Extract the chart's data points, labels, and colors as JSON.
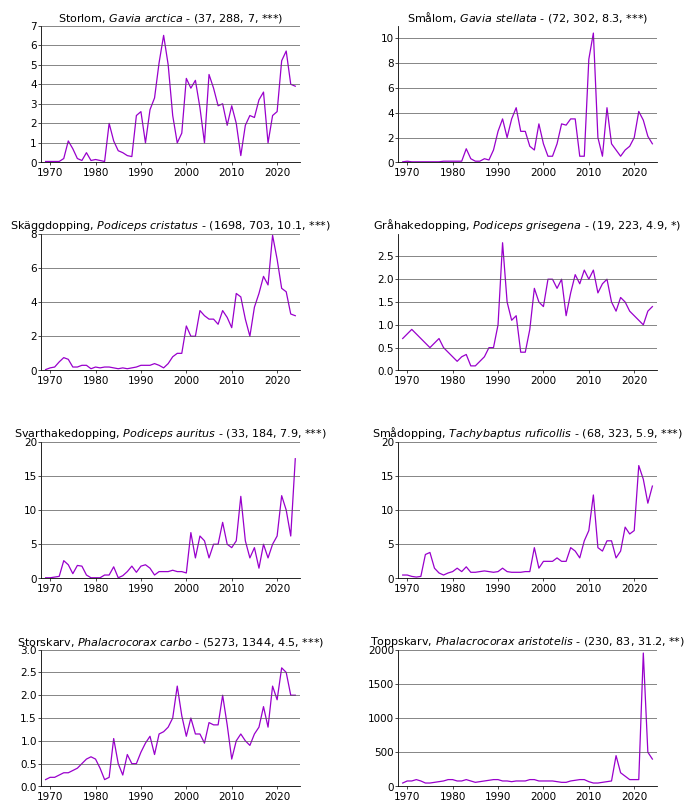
{
  "panels": [
    {
      "title": "Storlom, ",
      "title_italic": "Gavia arctica",
      "title_suffix": " - (37, 288, 7, ***)",
      "ylim": [
        0,
        7
      ],
      "yticks": [
        0,
        1,
        2,
        3,
        4,
        5,
        6,
        7
      ],
      "years": [
        1969,
        1970,
        1971,
        1972,
        1973,
        1974,
        1975,
        1976,
        1977,
        1978,
        1979,
        1980,
        1981,
        1982,
        1983,
        1984,
        1985,
        1986,
        1987,
        1988,
        1989,
        1990,
        1991,
        1992,
        1993,
        1994,
        1995,
        1996,
        1997,
        1998,
        1999,
        2000,
        2001,
        2002,
        2003,
        2004,
        2005,
        2006,
        2007,
        2008,
        2009,
        2010,
        2011,
        2012,
        2013,
        2014,
        2015,
        2016,
        2017,
        2018,
        2019,
        2020,
        2021,
        2022,
        2023,
        2024
      ],
      "values": [
        0.05,
        0.05,
        0.05,
        0.05,
        0.2,
        1.1,
        0.7,
        0.2,
        0.1,
        0.5,
        0.1,
        0.15,
        0.1,
        0.05,
        2.0,
        1.1,
        0.6,
        0.5,
        0.35,
        0.3,
        2.4,
        2.6,
        1.0,
        2.7,
        3.3,
        5.1,
        6.5,
        5.0,
        2.4,
        1.0,
        1.5,
        4.3,
        3.8,
        4.2,
        2.8,
        1.0,
        4.5,
        3.8,
        2.9,
        3.0,
        1.9,
        2.9,
        2.0,
        0.35,
        1.9,
        2.4,
        2.3,
        3.2,
        3.6,
        1.0,
        2.4,
        2.6,
        5.2,
        5.7,
        4.0,
        3.9
      ]
    },
    {
      "title": "Smålom, ",
      "title_italic": "Gavia stellata",
      "title_suffix": " - (72, 302, 8.3, ***)",
      "ylim": [
        0,
        11
      ],
      "yticks": [
        0,
        2,
        4,
        6,
        8,
        10
      ],
      "years": [
        1969,
        1970,
        1971,
        1972,
        1973,
        1974,
        1975,
        1976,
        1977,
        1978,
        1979,
        1980,
        1981,
        1982,
        1983,
        1984,
        1985,
        1986,
        1987,
        1988,
        1989,
        1990,
        1991,
        1992,
        1993,
        1994,
        1995,
        1996,
        1997,
        1998,
        1999,
        2000,
        2001,
        2002,
        2003,
        2004,
        2005,
        2006,
        2007,
        2008,
        2009,
        2010,
        2011,
        2012,
        2013,
        2014,
        2015,
        2016,
        2017,
        2018,
        2019,
        2020,
        2021,
        2022,
        2023,
        2024
      ],
      "values": [
        0.05,
        0.1,
        0.05,
        0.05,
        0.05,
        0.05,
        0.05,
        0.05,
        0.05,
        0.1,
        0.1,
        0.1,
        0.1,
        0.1,
        1.1,
        0.3,
        0.1,
        0.1,
        0.3,
        0.2,
        1.0,
        2.5,
        3.5,
        2.0,
        3.5,
        4.4,
        2.5,
        2.5,
        1.3,
        1.0,
        3.1,
        1.5,
        0.5,
        0.5,
        1.5,
        3.1,
        3.0,
        3.5,
        3.5,
        0.5,
        0.5,
        8.3,
        10.4,
        2.0,
        0.5,
        4.4,
        1.5,
        1.0,
        0.5,
        1.0,
        1.3,
        2.0,
        4.1,
        3.4,
        2.1,
        1.5
      ]
    },
    {
      "title": "Skäggdopping, ",
      "title_italic": "Podiceps cristatus",
      "title_suffix": " - (1698, 703, 10.1, ***)",
      "ylim": [
        0,
        8
      ],
      "yticks": [
        0,
        2,
        4,
        6,
        8
      ],
      "years": [
        1969,
        1970,
        1971,
        1972,
        1973,
        1974,
        1975,
        1976,
        1977,
        1978,
        1979,
        1980,
        1981,
        1982,
        1983,
        1984,
        1985,
        1986,
        1987,
        1988,
        1989,
        1990,
        1991,
        1992,
        1993,
        1994,
        1995,
        1996,
        1997,
        1998,
        1999,
        2000,
        2001,
        2002,
        2003,
        2004,
        2005,
        2006,
        2007,
        2008,
        2009,
        2010,
        2011,
        2012,
        2013,
        2014,
        2015,
        2016,
        2017,
        2018,
        2019,
        2020,
        2021,
        2022,
        2023,
        2024
      ],
      "values": [
        0.05,
        0.15,
        0.2,
        0.5,
        0.75,
        0.65,
        0.2,
        0.2,
        0.3,
        0.3,
        0.1,
        0.2,
        0.15,
        0.2,
        0.2,
        0.15,
        0.1,
        0.15,
        0.1,
        0.15,
        0.2,
        0.3,
        0.3,
        0.3,
        0.4,
        0.3,
        0.15,
        0.4,
        0.8,
        1.0,
        1.0,
        2.6,
        2.0,
        2.0,
        3.5,
        3.2,
        3.0,
        3.0,
        2.7,
        3.5,
        3.1,
        2.5,
        4.5,
        4.3,
        3.0,
        2.0,
        3.7,
        4.5,
        5.5,
        5.0,
        7.9,
        6.5,
        4.8,
        4.6,
        3.3,
        3.2
      ]
    },
    {
      "title": "Gråhakedopping, ",
      "title_italic": "Podiceps grisegena",
      "title_suffix": " - (19, 223, 4.9, *)",
      "ylim": [
        0,
        3.0
      ],
      "yticks": [
        0.0,
        0.5,
        1.0,
        1.5,
        2.0,
        2.5
      ],
      "years": [
        1969,
        1970,
        1971,
        1972,
        1973,
        1974,
        1975,
        1976,
        1977,
        1978,
        1979,
        1980,
        1981,
        1982,
        1983,
        1984,
        1985,
        1986,
        1987,
        1988,
        1989,
        1990,
        1991,
        1992,
        1993,
        1994,
        1995,
        1996,
        1997,
        1998,
        1999,
        2000,
        2001,
        2002,
        2003,
        2004,
        2005,
        2006,
        2007,
        2008,
        2009,
        2010,
        2011,
        2012,
        2013,
        2014,
        2015,
        2016,
        2017,
        2018,
        2019,
        2020,
        2021,
        2022,
        2023,
        2024
      ],
      "values": [
        0.7,
        0.8,
        0.9,
        0.8,
        0.7,
        0.6,
        0.5,
        0.6,
        0.7,
        0.5,
        0.4,
        0.3,
        0.2,
        0.3,
        0.35,
        0.1,
        0.1,
        0.2,
        0.3,
        0.5,
        0.5,
        1.0,
        2.8,
        1.5,
        1.1,
        1.2,
        0.4,
        0.4,
        0.9,
        1.8,
        1.5,
        1.4,
        2.0,
        2.0,
        1.8,
        2.0,
        1.2,
        1.7,
        2.1,
        1.9,
        2.2,
        2.0,
        2.2,
        1.7,
        1.9,
        2.0,
        1.5,
        1.3,
        1.6,
        1.5,
        1.3,
        1.2,
        1.1,
        1.0,
        1.3,
        1.4
      ]
    },
    {
      "title": "Svarthakedopping, ",
      "title_italic": "Podiceps auritus",
      "title_suffix": " - (33, 184, 7.9, ***)",
      "ylim": [
        0,
        20
      ],
      "yticks": [
        0,
        5,
        10,
        15,
        20
      ],
      "years": [
        1969,
        1970,
        1971,
        1972,
        1973,
        1974,
        1975,
        1976,
        1977,
        1978,
        1979,
        1980,
        1981,
        1982,
        1983,
        1984,
        1985,
        1986,
        1987,
        1988,
        1989,
        1990,
        1991,
        1992,
        1993,
        1994,
        1995,
        1996,
        1997,
        1998,
        1999,
        2000,
        2001,
        2002,
        2003,
        2004,
        2005,
        2006,
        2007,
        2008,
        2009,
        2010,
        2011,
        2012,
        2013,
        2014,
        2015,
        2016,
        2017,
        2018,
        2019,
        2020,
        2021,
        2022,
        2023,
        2024
      ],
      "values": [
        0.1,
        0.1,
        0.2,
        0.3,
        2.6,
        2.0,
        0.7,
        1.9,
        1.8,
        0.5,
        0.1,
        0.1,
        0.1,
        0.5,
        0.5,
        1.7,
        0.1,
        0.4,
        1.0,
        1.8,
        0.9,
        1.8,
        2.0,
        1.5,
        0.5,
        1.0,
        1.0,
        1.0,
        1.2,
        1.0,
        1.0,
        0.8,
        6.7,
        3.0,
        6.2,
        5.5,
        3.0,
        5.0,
        5.0,
        8.2,
        5.0,
        4.5,
        5.5,
        12.0,
        5.5,
        3.0,
        4.5,
        1.5,
        5.0,
        3.0,
        5.0,
        6.2,
        12.1,
        10.0,
        6.2,
        17.5
      ]
    },
    {
      "title": "Smådopping, ",
      "title_italic": "Tachybaptus ruficollis",
      "title_suffix": " - (68, 323, 5.9, ***)",
      "ylim": [
        0,
        20
      ],
      "yticks": [
        0,
        5,
        10,
        15,
        20
      ],
      "years": [
        1969,
        1970,
        1971,
        1972,
        1973,
        1974,
        1975,
        1976,
        1977,
        1978,
        1979,
        1980,
        1981,
        1982,
        1983,
        1984,
        1985,
        1986,
        1987,
        1988,
        1989,
        1990,
        1991,
        1992,
        1993,
        1994,
        1995,
        1996,
        1997,
        1998,
        1999,
        2000,
        2001,
        2002,
        2003,
        2004,
        2005,
        2006,
        2007,
        2008,
        2009,
        2010,
        2011,
        2012,
        2013,
        2014,
        2015,
        2016,
        2017,
        2018,
        2019,
        2020,
        2021,
        2022,
        2023,
        2024
      ],
      "values": [
        0.5,
        0.5,
        0.3,
        0.2,
        0.3,
        3.5,
        3.8,
        1.5,
        0.8,
        0.5,
        0.8,
        1.0,
        1.5,
        1.0,
        1.7,
        0.9,
        0.9,
        1.0,
        1.1,
        1.0,
        0.9,
        1.0,
        1.5,
        1.0,
        0.9,
        0.9,
        0.9,
        1.0,
        1.0,
        4.5,
        1.5,
        2.5,
        2.5,
        2.5,
        3.0,
        2.5,
        2.5,
        4.5,
        4.0,
        3.0,
        5.5,
        7.0,
        12.2,
        4.5,
        4.0,
        5.5,
        5.5,
        3.0,
        4.0,
        7.5,
        6.5,
        7.0,
        16.5,
        14.5,
        11.0,
        13.5
      ]
    },
    {
      "title": "Storskarv, ",
      "title_italic": "Phalacrocorax carbo",
      "title_suffix": " - (5273, 1344, 4.5, ***)",
      "ylim": [
        0,
        3.0
      ],
      "yticks": [
        0.0,
        0.5,
        1.0,
        1.5,
        2.0,
        2.5,
        3.0
      ],
      "years": [
        1969,
        1970,
        1971,
        1972,
        1973,
        1974,
        1975,
        1976,
        1977,
        1978,
        1979,
        1980,
        1981,
        1982,
        1983,
        1984,
        1985,
        1986,
        1987,
        1988,
        1989,
        1990,
        1991,
        1992,
        1993,
        1994,
        1995,
        1996,
        1997,
        1998,
        1999,
        2000,
        2001,
        2002,
        2003,
        2004,
        2005,
        2006,
        2007,
        2008,
        2009,
        2010,
        2011,
        2012,
        2013,
        2014,
        2015,
        2016,
        2017,
        2018,
        2019,
        2020,
        2021,
        2022,
        2023,
        2024
      ],
      "values": [
        0.15,
        0.2,
        0.2,
        0.25,
        0.3,
        0.3,
        0.35,
        0.4,
        0.5,
        0.6,
        0.65,
        0.6,
        0.4,
        0.15,
        0.2,
        1.05,
        0.5,
        0.25,
        0.7,
        0.5,
        0.5,
        0.75,
        0.95,
        1.1,
        0.7,
        1.15,
        1.2,
        1.3,
        1.5,
        2.2,
        1.55,
        1.1,
        1.5,
        1.15,
        1.15,
        0.95,
        1.4,
        1.35,
        1.35,
        2.0,
        1.35,
        0.6,
        1.0,
        1.15,
        1.0,
        0.9,
        1.15,
        1.3,
        1.75,
        1.3,
        2.2,
        1.9,
        2.6,
        2.5,
        2.0,
        2.0
      ]
    },
    {
      "title": "Toppskarv, ",
      "title_italic": "Phalacrocorax aristotelis",
      "title_suffix": " - (230, 83, 31.2, **)",
      "ylim": [
        0,
        2000
      ],
      "yticks": [
        0,
        500,
        1000,
        1500,
        2000
      ],
      "years": [
        1969,
        1970,
        1971,
        1972,
        1973,
        1974,
        1975,
        1976,
        1977,
        1978,
        1979,
        1980,
        1981,
        1982,
        1983,
        1984,
        1985,
        1986,
        1987,
        1988,
        1989,
        1990,
        1991,
        1992,
        1993,
        1994,
        1995,
        1996,
        1997,
        1998,
        1999,
        2000,
        2001,
        2002,
        2003,
        2004,
        2005,
        2006,
        2007,
        2008,
        2009,
        2010,
        2011,
        2012,
        2013,
        2014,
        2015,
        2016,
        2017,
        2018,
        2019,
        2020,
        2021,
        2022,
        2023,
        2024
      ],
      "values": [
        50,
        80,
        80,
        100,
        80,
        50,
        50,
        60,
        70,
        80,
        100,
        100,
        80,
        80,
        100,
        80,
        60,
        70,
        80,
        90,
        100,
        100,
        80,
        80,
        70,
        80,
        80,
        80,
        100,
        100,
        80,
        80,
        80,
        80,
        70,
        60,
        60,
        80,
        90,
        100,
        100,
        70,
        50,
        50,
        60,
        70,
        80,
        450,
        200,
        150,
        100,
        100,
        100,
        1950,
        500,
        400
      ]
    }
  ],
  "line_color": "#9900CC",
  "line_width": 0.9,
  "xticks": [
    1970,
    1980,
    1990,
    2000,
    2010,
    2020
  ],
  "xlim": [
    1968,
    2025
  ],
  "background_color": "#ffffff",
  "grid_color": "#555555",
  "title_fontsize": 8.0,
  "tick_fontsize": 7.5,
  "fig_width": 6.92,
  "fig_height": 8.27
}
